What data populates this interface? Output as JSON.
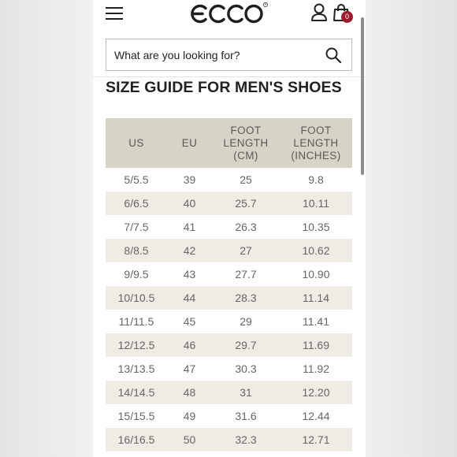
{
  "header": {
    "logo_text": "ecco",
    "cart_count": "0"
  },
  "search": {
    "placeholder": "What are you looking for?"
  },
  "page_title": "SIZE GUIDE FOR MEN'S SHOES",
  "table": {
    "headers": {
      "us": "US",
      "eu": "EU",
      "cm": "FOOT LENGTH (CM)",
      "in": "FOOT LENGTH (INCHES)"
    },
    "rows": [
      {
        "us": "5/5.5",
        "eu": "39",
        "cm": "25",
        "in": "9.8"
      },
      {
        "us": "6/6.5",
        "eu": "40",
        "cm": "25.7",
        "in": "10.11"
      },
      {
        "us": "7/7.5",
        "eu": "41",
        "cm": "26.3",
        "in": "10.35"
      },
      {
        "us": "8/8.5",
        "eu": "42",
        "cm": "27",
        "in": "10.62"
      },
      {
        "us": "9/9.5",
        "eu": "43",
        "cm": "27.7",
        "in": "10.90"
      },
      {
        "us": "10/10.5",
        "eu": "44",
        "cm": "28.3",
        "in": "11.14"
      },
      {
        "us": "11/11.5",
        "eu": "45",
        "cm": "29",
        "in": "11.41"
      },
      {
        "us": "12/12.5",
        "eu": "46",
        "cm": "29.7",
        "in": "11.69"
      },
      {
        "us": "13/13.5",
        "eu": "47",
        "cm": "30.3",
        "in": "11.92"
      },
      {
        "us": "14/14.5",
        "eu": "48",
        "cm": "31",
        "in": "12.20"
      },
      {
        "us": "15/15.5",
        "eu": "49",
        "cm": "31.6",
        "in": "12.44"
      },
      {
        "us": "16/16.5",
        "eu": "50",
        "cm": "32.3",
        "in": "12.71"
      }
    ]
  },
  "colors": {
    "header_band": "#d8d3c7",
    "alt_row": "#efece6",
    "badge": "#9b1b2d"
  },
  "icons": [
    "menu-icon",
    "account-icon",
    "cart-icon",
    "search-icon"
  ]
}
